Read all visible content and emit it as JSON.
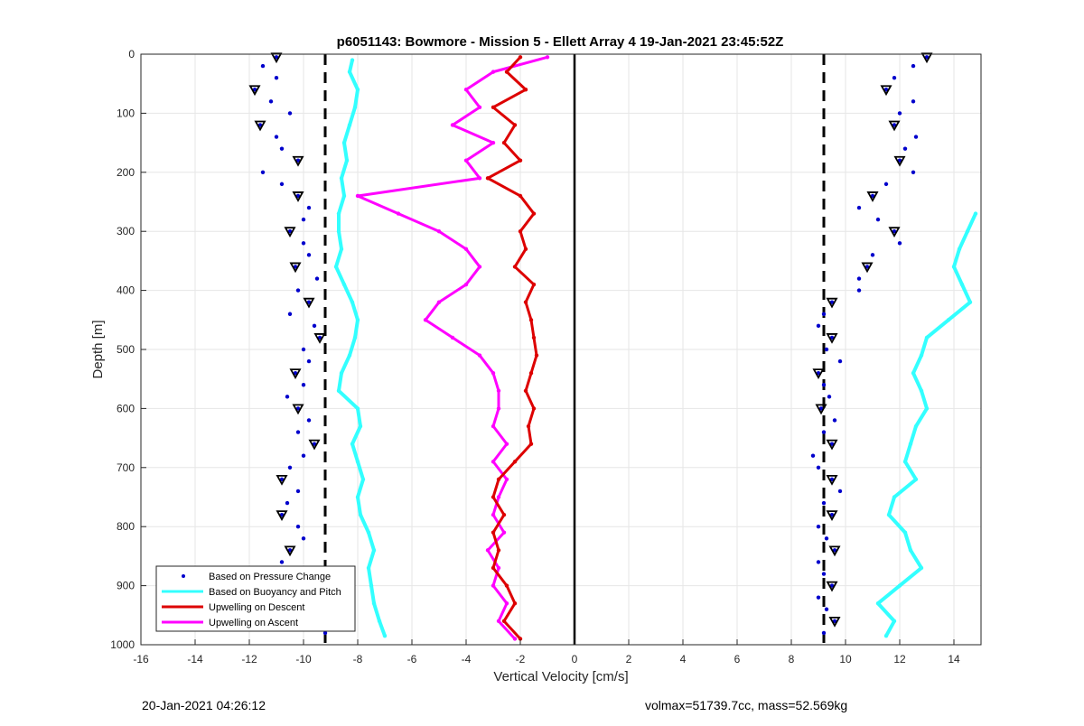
{
  "footer": {
    "timestamp": "20-Jan-2021 04:26:12",
    "volmax_mass": "volmax=51739.7cc, mass=52.569kg"
  },
  "colors": {
    "pressure": "#0000cc",
    "buoyancy": "#33ffff",
    "descent": "#dd0000",
    "ascent": "#ff00ff",
    "axis": "#000000",
    "grid": "#e6e6e6"
  },
  "chart_data": {
    "type": "scatter",
    "title": "p6051143: Bowmore - Mission 5 - Ellett Array 4 19-Jan-2021 23:45:52Z",
    "xlabel": "Vertical Velocity [cm/s]",
    "ylabel": "Depth [m]",
    "xlim": [
      -16,
      15
    ],
    "ylim": [
      0,
      1000
    ],
    "y_reversed": true,
    "grid": true,
    "x_ticks": [
      -16,
      -14,
      -12,
      -10,
      -8,
      -6,
      -4,
      -2,
      0,
      2,
      4,
      6,
      8,
      10,
      12,
      14
    ],
    "y_ticks": [
      0,
      100,
      200,
      300,
      400,
      500,
      600,
      700,
      800,
      900,
      1000
    ],
    "legend_position": "bottom-left",
    "reference_lines": [
      {
        "x": -9.2,
        "style": "dashed"
      },
      {
        "x": 9.2,
        "style": "dashed"
      },
      {
        "x": 0,
        "style": "solid"
      }
    ],
    "series": [
      {
        "name": "Based on Pressure Change",
        "mark": "dots",
        "descent": {
          "depth": [
            5,
            20,
            40,
            60,
            80,
            100,
            120,
            140,
            160,
            180,
            200,
            220,
            240,
            260,
            280,
            300,
            320,
            340,
            360,
            380,
            400,
            420,
            440,
            460,
            480,
            500,
            520,
            540,
            560,
            580,
            600,
            620,
            640,
            660,
            680,
            700,
            720,
            740,
            760,
            780,
            800,
            820,
            840,
            860,
            880,
            900,
            920,
            940,
            960,
            980
          ],
          "velocity": [
            -11.0,
            -11.5,
            -11.0,
            -11.8,
            -11.2,
            -10.5,
            -11.6,
            -11.0,
            -10.8,
            -10.2,
            -11.5,
            -10.8,
            -10.2,
            -9.8,
            -10.0,
            -10.5,
            -10.0,
            -9.8,
            -10.3,
            -9.5,
            -10.2,
            -9.8,
            -10.5,
            -9.6,
            -9.4,
            -10.0,
            -9.8,
            -10.3,
            -10.0,
            -10.6,
            -10.2,
            -9.8,
            -10.2,
            -9.6,
            -10.0,
            -10.5,
            -10.8,
            -10.2,
            -10.6,
            -10.8,
            -10.2,
            -10.0,
            -10.5,
            -10.8,
            -11.0,
            -10.3,
            -9.8,
            -9.5,
            -9.8,
            -9.2
          ]
        },
        "ascent": {
          "depth": [
            5,
            20,
            40,
            60,
            80,
            100,
            120,
            140,
            160,
            180,
            200,
            220,
            240,
            260,
            280,
            300,
            320,
            340,
            360,
            380,
            400,
            420,
            440,
            460,
            480,
            500,
            520,
            540,
            560,
            580,
            600,
            620,
            640,
            660,
            680,
            700,
            720,
            740,
            760,
            780,
            800,
            820,
            840,
            860,
            880,
            900,
            920,
            940,
            960,
            980
          ],
          "velocity": [
            13.0,
            12.5,
            11.8,
            11.5,
            12.5,
            12.0,
            11.8,
            12.6,
            12.2,
            12.0,
            12.5,
            11.5,
            11.0,
            10.5,
            11.2,
            11.8,
            12.0,
            11.0,
            10.8,
            10.5,
            10.5,
            9.5,
            9.2,
            9.0,
            9.5,
            9.3,
            9.8,
            9.0,
            9.2,
            9.4,
            9.1,
            9.6,
            9.2,
            9.5,
            8.8,
            9.0,
            9.5,
            9.8,
            9.2,
            9.5,
            9.0,
            9.3,
            9.6,
            9.0,
            9.2,
            9.5,
            9.0,
            9.3,
            9.6,
            9.2
          ]
        }
      },
      {
        "name": "Based on Buoyancy and Pitch",
        "mark": "line",
        "descent": {
          "depth": [
            10,
            30,
            60,
            90,
            120,
            150,
            180,
            210,
            240,
            270,
            300,
            330,
            360,
            390,
            420,
            450,
            480,
            510,
            540,
            570,
            600,
            630,
            660,
            690,
            720,
            750,
            780,
            810,
            840,
            870,
            900,
            930,
            960,
            985
          ],
          "velocity": [
            -8.2,
            -8.3,
            -8.0,
            -8.1,
            -8.3,
            -8.5,
            -8.4,
            -8.6,
            -8.5,
            -8.7,
            -8.7,
            -8.6,
            -8.8,
            -8.5,
            -8.2,
            -8.0,
            -8.1,
            -8.3,
            -8.6,
            -8.7,
            -8.0,
            -7.9,
            -8.2,
            -8.0,
            -7.8,
            -8.0,
            -7.9,
            -7.6,
            -7.4,
            -7.6,
            -7.5,
            -7.4,
            -7.2,
            -7.0
          ]
        },
        "ascent": {
          "depth": [
            270,
            300,
            330,
            360,
            390,
            420,
            450,
            480,
            510,
            540,
            570,
            600,
            630,
            660,
            690,
            720,
            750,
            780,
            810,
            840,
            870,
            900,
            930,
            960,
            985
          ],
          "velocity": [
            14.8,
            14.5,
            14.2,
            14.0,
            14.3,
            14.6,
            13.8,
            13.0,
            12.8,
            12.5,
            12.8,
            13.0,
            12.6,
            12.4,
            12.2,
            12.6,
            11.8,
            11.6,
            12.2,
            12.4,
            12.8,
            12.0,
            11.2,
            11.8,
            11.5
          ]
        }
      },
      {
        "name": "Upwelling on Descent",
        "mark": "line",
        "depth": [
          5,
          30,
          60,
          90,
          120,
          150,
          180,
          210,
          240,
          270,
          300,
          330,
          360,
          390,
          420,
          450,
          480,
          510,
          540,
          570,
          600,
          630,
          660,
          690,
          720,
          750,
          780,
          810,
          840,
          870,
          900,
          930,
          960,
          990
        ],
        "velocity": [
          -2.0,
          -2.5,
          -1.8,
          -3.0,
          -2.2,
          -2.6,
          -2.0,
          -3.2,
          -2.0,
          -1.5,
          -2.0,
          -1.8,
          -2.2,
          -1.5,
          -1.8,
          -1.6,
          -1.5,
          -1.4,
          -1.6,
          -1.8,
          -1.5,
          -1.7,
          -1.6,
          -2.2,
          -2.8,
          -3.0,
          -2.6,
          -3.0,
          -2.8,
          -3.0,
          -2.5,
          -2.2,
          -2.6,
          -2.0
        ]
      },
      {
        "name": "Upwelling on Ascent",
        "mark": "line",
        "depth": [
          5,
          30,
          60,
          90,
          120,
          150,
          180,
          210,
          240,
          270,
          300,
          330,
          360,
          390,
          420,
          450,
          480,
          510,
          540,
          570,
          600,
          630,
          660,
          690,
          720,
          750,
          780,
          810,
          840,
          870,
          900,
          930,
          960,
          990
        ],
        "velocity": [
          -1.0,
          -3.0,
          -4.0,
          -3.5,
          -4.5,
          -3.0,
          -4.0,
          -3.5,
          -8.0,
          -6.5,
          -5.0,
          -4.0,
          -3.5,
          -4.0,
          -5.0,
          -5.5,
          -4.5,
          -3.5,
          -3.0,
          -2.8,
          -2.8,
          -3.0,
          -2.5,
          -3.0,
          -2.5,
          -2.8,
          -3.0,
          -2.6,
          -3.2,
          -2.8,
          -3.0,
          -2.5,
          -2.8,
          -2.2
        ]
      }
    ],
    "markers": {
      "triangles_on_pressure": true
    }
  }
}
